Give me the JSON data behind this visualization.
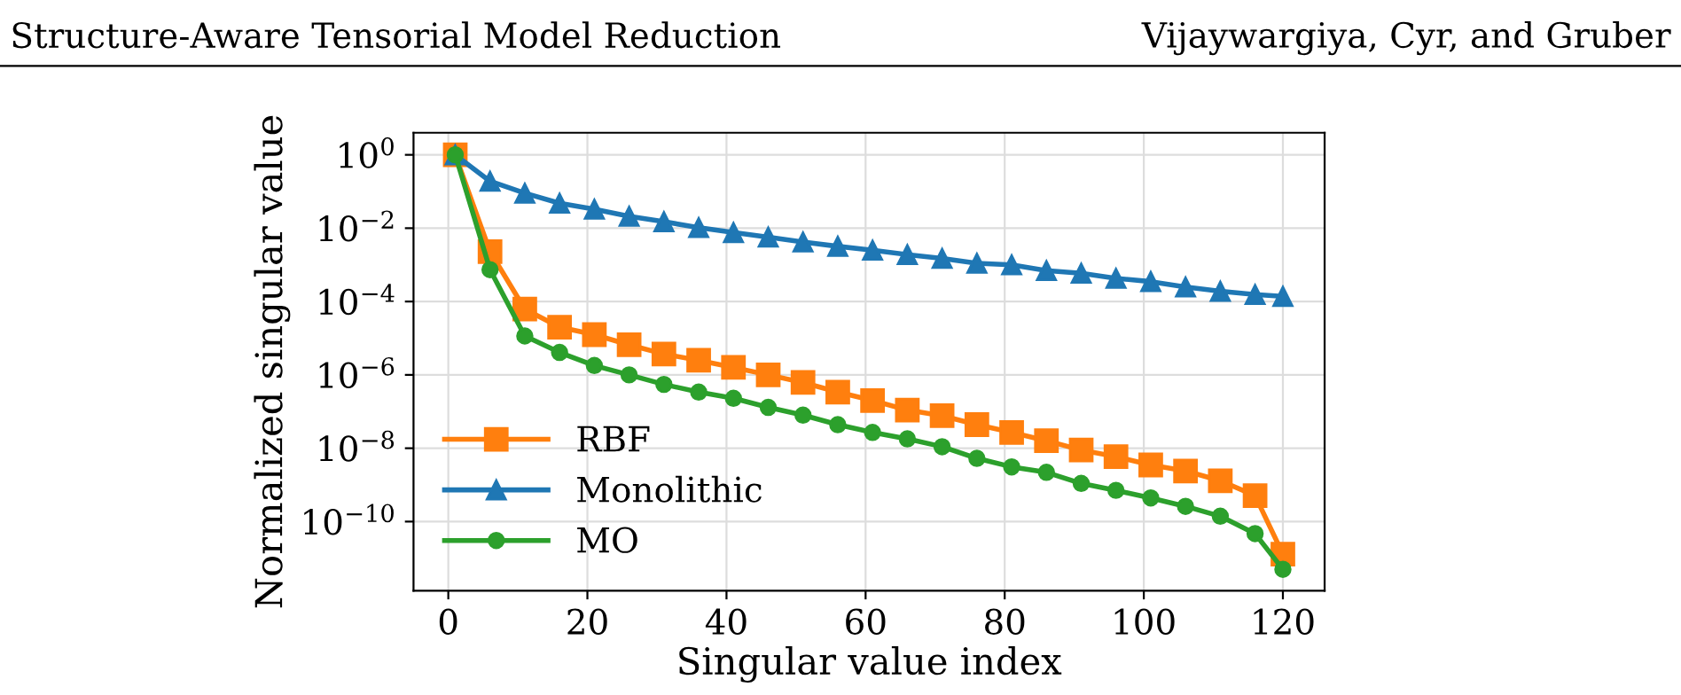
{
  "chart_data": {
    "type": "line",
    "xlabel": "Singular value index",
    "ylabel": "Normalized singular value",
    "annotations": [
      "Structure-Aware Tensorial Model Reduction",
      "Vijaywargiya, Cyr, and Gruber"
    ],
    "log": "y",
    "grid": true,
    "legend": "bottom left",
    "line_style": "solid",
    "xlim": [
      -5,
      126
    ],
    "xticks": [
      0,
      20,
      40,
      60,
      80,
      100,
      120
    ],
    "ylim": [
      1.3e-12,
      4
    ],
    "yticks": [
      {
        "value": 1,
        "label": "10$^{0}$"
      },
      {
        "value": 0.01,
        "label": "10$^{−2}$"
      },
      {
        "value": 0.0001,
        "label": "10$^{−4}$"
      },
      {
        "value": 1e-06,
        "label": "10$^{−6}$"
      },
      {
        "value": 1e-08,
        "label": "10$^{−8}$"
      },
      {
        "value": 1e-10,
        "label": "10$^{−10}$"
      }
    ],
    "x": [
      1,
      6,
      11,
      16,
      21,
      26,
      31,
      36,
      41,
      46,
      51,
      56,
      61,
      66,
      71,
      76,
      81,
      86,
      91,
      96,
      101,
      106,
      111,
      116,
      120
    ],
    "series": [
      {
        "name": "RBF",
        "color": "#ff7f0e",
        "marker": "square",
        "values": [
          1,
          0.0023,
          6.2e-05,
          2e-05,
          1.25e-05,
          6.6e-06,
          3.7e-06,
          2.5e-06,
          1.6e-06,
          1e-06,
          6.2e-07,
          3.4e-07,
          2e-07,
          1.1e-07,
          7.7e-08,
          4.4e-08,
          2.7e-08,
          1.6e-08,
          8.9e-09,
          5.9e-09,
          3.5e-09,
          2.4e-09,
          1.3e-09,
          5.1e-10,
          1.3e-11
        ]
      },
      {
        "name": "Monolithic",
        "color": "#1f77b4",
        "marker": "triangle",
        "values": [
          1,
          0.19,
          0.09,
          0.048,
          0.033,
          0.021,
          0.015,
          0.0104,
          0.0076,
          0.0057,
          0.0042,
          0.0032,
          0.0025,
          0.0019,
          0.0015,
          0.0011,
          0.001,
          0.0007,
          0.00059,
          0.00043,
          0.00035,
          0.00025,
          0.00019,
          0.000155,
          0.000138
        ]
      },
      {
        "name": "MO",
        "color": "#2ca02c",
        "marker": "circle",
        "values": [
          1,
          0.00074,
          1.15e-05,
          4.1e-06,
          1.8e-06,
          1e-06,
          5.5e-07,
          3.4e-07,
          2.3e-07,
          1.3e-07,
          8e-08,
          4.4e-08,
          2.7e-08,
          1.8e-08,
          1.1e-08,
          5.3e-09,
          3.1e-09,
          2.2e-09,
          1.1e-09,
          7.1e-10,
          4.4e-10,
          2.6e-10,
          1.4e-10,
          4.7e-11,
          5e-12
        ]
      }
    ]
  }
}
